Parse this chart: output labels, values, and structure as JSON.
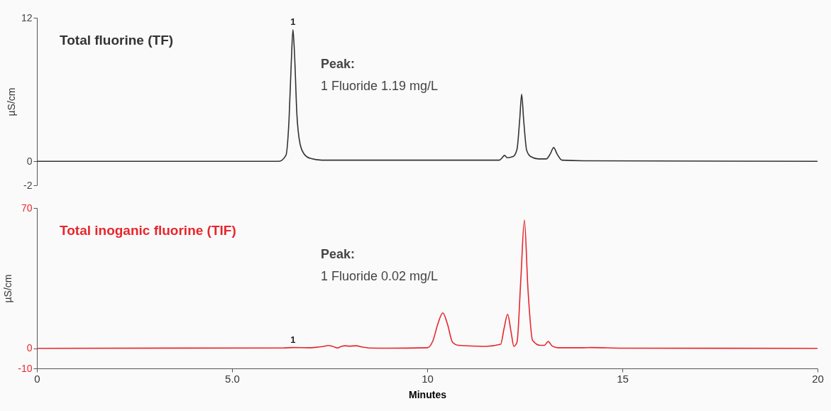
{
  "chart_data": [
    {
      "type": "line",
      "ylabel": "µS/cm",
      "xlim": [
        0,
        20
      ],
      "ylim": [
        -2,
        12
      ],
      "yticks": [
        -2,
        0,
        12
      ],
      "tick_labels": "y",
      "series": [
        {
          "name": "Total fluorine (TF)",
          "color": "#333333",
          "x": [
            0,
            6.2,
            6.38,
            6.46,
            6.52,
            6.56,
            6.6,
            6.66,
            6.74,
            6.85,
            7.0,
            7.3,
            11.85,
            11.92,
            11.98,
            12.05,
            12.2,
            12.3,
            12.37,
            12.42,
            12.47,
            12.55,
            12.65,
            12.85,
            13.05,
            13.15,
            13.24,
            13.33,
            13.45,
            14,
            20
          ],
          "values": [
            0,
            0,
            0.5,
            3.5,
            8.5,
            11.0,
            9.0,
            4.0,
            1.5,
            0.6,
            0.25,
            0.1,
            0.1,
            0.3,
            0.5,
            0.3,
            0.4,
            1.0,
            3.5,
            5.6,
            3.5,
            0.9,
            0.4,
            0.2,
            0.2,
            0.6,
            1.15,
            0.6,
            0.1,
            0.05,
            0
          ]
        }
      ],
      "annotations": [
        {
          "text": "1",
          "x": 6.56,
          "y": 11.0
        },
        "Peak:",
        "1 Fluoride 1.19 mg/L"
      ]
    },
    {
      "type": "line",
      "xlabel": "Minutes",
      "ylabel": "µS/cm",
      "xlim": [
        0,
        20
      ],
      "xticks": [
        0,
        {
          "value": 5,
          "label": "5.0"
        },
        10,
        15,
        20
      ],
      "ylim": [
        -10,
        70
      ],
      "yticks": [
        -10,
        0,
        70
      ],
      "series": [
        {
          "name": "Total inoganic fluorine (TIF)",
          "color": "#e8262d",
          "x": [
            0,
            6.3,
            6.56,
            7.0,
            7.2,
            7.35,
            7.46,
            7.58,
            7.7,
            7.8,
            7.9,
            8.0,
            8.18,
            8.35,
            8.5,
            9,
            10.0,
            10.15,
            10.27,
            10.4,
            10.52,
            10.65,
            10.8,
            11.5,
            11.88,
            11.97,
            12.06,
            12.15,
            12.22,
            12.3,
            12.4,
            12.49,
            12.58,
            12.7,
            12.9,
            13.0,
            13.1,
            13.2,
            13.35,
            14,
            14.2,
            15,
            20
          ],
          "values": [
            0,
            0.2,
            0.4,
            0.3,
            0.6,
            1.0,
            1.4,
            1.0,
            0.2,
            1.0,
            1.3,
            1.1,
            1.3,
            0.6,
            0.2,
            0.1,
            0.3,
            4,
            12,
            17.7,
            12,
            3,
            1.5,
            1.0,
            2,
            10,
            17,
            8,
            1.0,
            3,
            35,
            64,
            30,
            4,
            1.5,
            1.5,
            3.4,
            1.2,
            0.3,
            0.3,
            0.4,
            0.1,
            0
          ]
        }
      ],
      "annotations": [
        {
          "text": "1",
          "x": 6.56,
          "y": 0.4
        },
        "Peak:",
        "1 Fluoride 0.02 mg/L"
      ]
    }
  ]
}
